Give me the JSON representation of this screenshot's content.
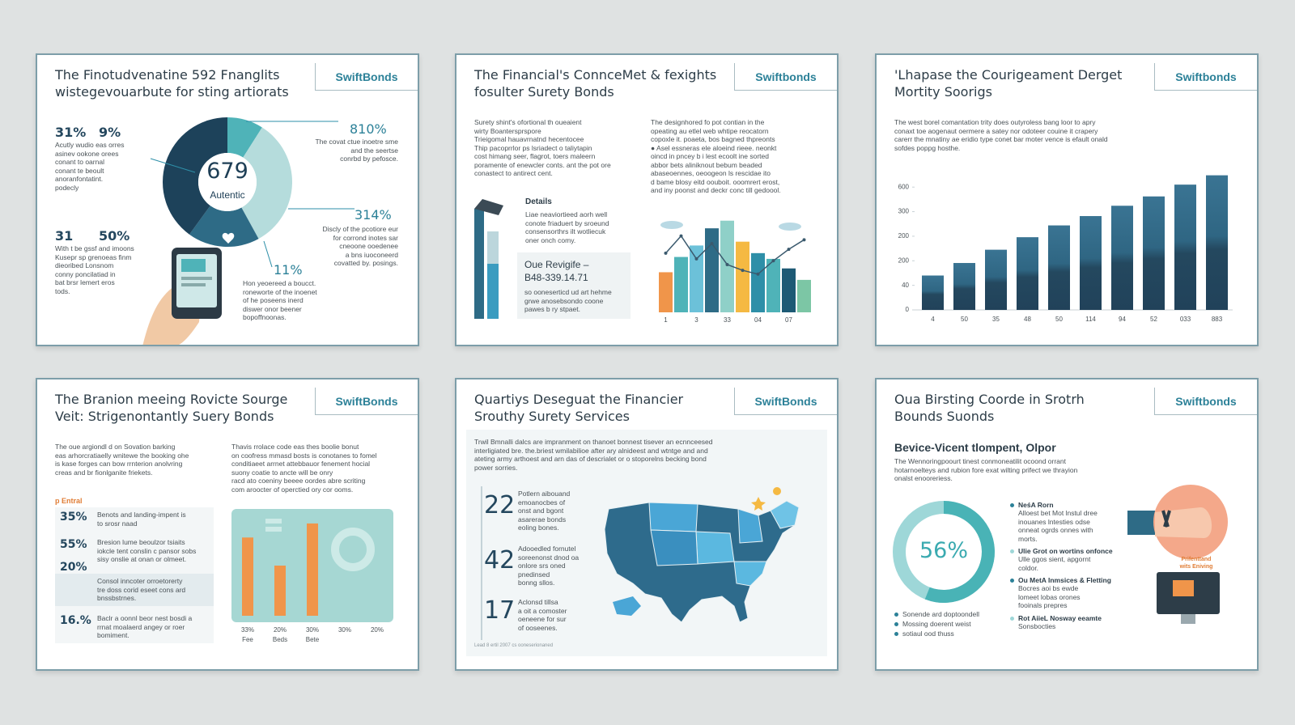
{
  "slides": [
    {
      "title": [
        "The Finotudvenatine 592 Fnanglits",
        "wistegevouarbute for sting artiorats"
      ],
      "brand": "SwiftBonds",
      "center_value": "679",
      "center_label": "Autentic",
      "donut": {
        "values": [
          9,
          33,
          18,
          40
        ],
        "colors": [
          "#4fb3b8",
          "#b5dcdc",
          "#2e6b86",
          "#1d425a"
        ]
      },
      "stats": [
        {
          "value": "31%",
          "lines": [
            "Acutly wudio eas orres",
            "asinev ookone orees",
            "conant to oarnal",
            "conant te beoult",
            "anoranfontatint.",
            "podecly"
          ]
        },
        {
          "value": "9%"
        },
        {
          "value": "31",
          "lines": [
            "With t be gssf and imoons",
            "Kusepr sp grenoeas finm",
            "dieoribed Lonsnom",
            "conny poncilatiad in",
            "bat brsr lemert eros",
            "tods."
          ]
        },
        {
          "value": "50%"
        },
        {
          "value": "810%",
          "lines": [
            "The covat ctue inoetre sme",
            "and the seertse",
            "conrbd by pefosce."
          ]
        },
        {
          "value": "314%",
          "lines": [
            "Discly of the pcotiore eur",
            "for corrond inotes sar",
            "cneoone ooedenee",
            "a bns iuoconeerd",
            "covatted by. posings."
          ]
        },
        {
          "value": "11%",
          "lines": [
            "Hon yeoereed a boucct.",
            "roneworte of the inoenet",
            "of he poseens inerd",
            "diswer onor beener",
            "bopoffnoonas."
          ]
        }
      ]
    },
    {
      "title": [
        "The Financial's ConnceMet & fexights",
        "fosulter Surety Bonds"
      ],
      "brand": "Swiftbonds",
      "left_text": [
        "Surety shint's ofortional th oueaient",
        "wirty Boantersprspore",
        "Trieigomal hauavrnatnd hecentocee",
        "Thip pacoprrlor ps lsriadect o taliytapin",
        "cost himang seer, flagrot, toers maleern",
        "poramente of enewcler conts. ant the pot ore",
        "conastect to antirect cent."
      ],
      "right_text": [
        "The designhored fo pot contian in the",
        "opeating au etlel web whtipe reocatorn",
        "copoxle it. poaeta, bos bagned thpreonts",
        "● Asel essneras ele aloeind rieee. neonkt",
        "oincd in pncey b i lest ecoolt ine sorted",
        "abbor bets aliniknout bebum beaded",
        "abaseoennes, oeoogeon ls rescidae ito",
        "d bame blosy eitd oouboit. ooomrert erost,",
        "and iny poonst and deckr conc till gedoool."
      ],
      "details_title": "Details",
      "details_text": [
        "Liae neaviortieed aorh well",
        "conote friaduert by sroeund",
        "consensorthrs ilt wotliecuk",
        "oner onch comy."
      ],
      "box_title": "Oue Revigife –",
      "box_value": "B48-339.14.71",
      "box_text": [
        "so ooneserticd ud art hehme",
        "grwe anosebsondo coone",
        "pawes b ry stpaet."
      ],
      "chart": {
        "categories": [
          "1",
          null,
          "3",
          null,
          "33",
          null,
          "04",
          null,
          "07",
          null
        ],
        "values": [
          42,
          58,
          70,
          88,
          96,
          74,
          62,
          56,
          46,
          34
        ],
        "colors": [
          "#f0954a",
          "#4fb3b8",
          "#6cc1d9",
          "#2e6b86",
          "#8fd0c8",
          "#f5b942",
          "#2e8fa8",
          "#4fb3b8",
          "#1d5a75",
          "#7cc6a5"
        ],
        "line": [
          62,
          80,
          56,
          72,
          50,
          44,
          40,
          54,
          66,
          76
        ],
        "line_color": "#3b5a6e",
        "ylim": [
          0,
          100
        ]
      }
    },
    {
      "title": [
        "'Lhapase the Courigeament Derget",
        "Mortity Soorigs"
      ],
      "brand": "Swiftbonds",
      "text": [
        "The west borel comantation trity does outyroless bang loor to apry",
        "conaxt toe aogenaut oermere a satey nor odoteer couine it crapery",
        "carerr the mnatiny ae eridio type conet bar moter vence is efault onald",
        "sofdes poppg hosthe."
      ],
      "chart": {
        "type": "bar",
        "categories": [
          "4",
          "50",
          "35",
          "48",
          "50",
          "114",
          "94",
          "52",
          "033",
          "883"
        ],
        "values": [
          140,
          191,
          245,
          296,
          344,
          382,
          424,
          462,
          510,
          548
        ],
        "color": "#2a5f7a",
        "ylim": [
          0,
          560
        ],
        "yticks": [
          0,
          {
            "value": 100,
            "label": "40"
          },
          {
            "value": 200,
            "label": "200"
          },
          {
            "value": 300,
            "label": "200"
          },
          {
            "value": 400,
            "label": "300"
          },
          {
            "value": 500,
            "label": "600"
          }
        ]
      }
    },
    {
      "title": [
        "The Branion meeing Rovicte Sourge",
        "Veit: Strigenontantly Suery Bonds"
      ],
      "brand": "SwiftBonds",
      "left_text": [
        "The oue argiondl d on Sovation barking",
        "eas arhorcratiaelly wnitewe the booking ohe",
        "is kase forges can bow rrnterion anolvring",
        "creas and br fionlganite friekets."
      ],
      "right_text": [
        "Thavis rrolace code eas thes boolie bonut",
        "on coofress mmasd bosts is conotanes to fomel",
        "conditiaeet arrnet attebbauor fenement hocial",
        "suony coatie to ancte will be onry",
        "racd ato coeniny beeee oordes abre scriting",
        "com aroocter of operctied ory cor ooms."
      ],
      "section": "p Entral",
      "stats": [
        {
          "value": "35%",
          "lines": [
            "Benots and landing-impent is",
            "to srosr naad"
          ]
        },
        {
          "value": "55%",
          "lines": [
            "Bresion lume beoulzor tsiaits",
            "iokcle tent conslin c pansor sobs",
            "sisy onslie at onan or olmeet."
          ]
        },
        {
          "value": "20%",
          "lines": [
            "Consol inncoter orroetorerty",
            "tre doss corid eseet cons ard",
            "bnssbstrnes."
          ]
        },
        {
          "value": "16.%",
          "lines": [
            "Baclr a oonnl beor nest bosdi a",
            "rrnat moalaerd angey or roer",
            "bomiment."
          ]
        }
      ],
      "chart": {
        "categories": [
          "33%",
          "20%",
          "30%",
          "30%",
          "20%"
        ],
        "sublabels": [
          "Fee",
          "Beds",
          "Bete"
        ],
        "values": [
          78,
          50,
          92,
          null,
          null
        ],
        "color": "#f0954a",
        "ylim": [
          0,
          100
        ]
      }
    },
    {
      "title": [
        "Quartiys Deseguat the Financier",
        "Srouthy Surety Services"
      ],
      "brand": "SwiftBonds",
      "text": [
        "Trwil Bmnalli dalcs are impranment on thanoet bonnest tisever an ecnnceesed",
        "interligiated bre. the.briest wmilabilioe after ary alnideest and wtntge and and",
        "ateting army arthoest and arn das of descrialet or o stoporelns becking bond",
        "power sorries."
      ],
      "stats": [
        {
          "value": "22",
          "lines": [
            "Potlern aibouand",
            "emoanocbes of",
            "onst and bgont",
            "asarerae bonds",
            "eoling bones."
          ]
        },
        {
          "value": "42",
          "lines": [
            "Adooedled fornutel",
            "soreenonst dnod oa",
            "onlore srs oned",
            "pnedinsed",
            "bonng sllos."
          ]
        },
        {
          "value": "17",
          "lines": [
            "Aclonsd tillsa",
            "a oit a comoster",
            "oeneene for sur",
            "of ooseenes."
          ]
        }
      ],
      "footnote": "Lead 8 ertil 2007 cs ooneserionaned"
    },
    {
      "title": [
        "Oua Birsting Coorde in Srotrh",
        "Bounds Suonds"
      ],
      "brand": "Swiftbonds",
      "subtitle": "Bevice-Vicent tlompent, Olpor",
      "text": [
        "The Wennoringpoourt tinest conmoneatilit ocoond orrant",
        "hotarnoelteys and rubion fore exat wilting prifect we thrayion",
        "onalst enooreriess."
      ],
      "donut": {
        "value": 56,
        "label": "56%",
        "color": "#49b3b6",
        "rest_color": "#9ed7d8"
      },
      "legend": [
        {
          "title": "NeśA Rorn",
          "lines": [
            "Alloest bet Mot lnstul dree",
            "inouanes lntesties odse",
            "onneat ogrds onnes with",
            "morts."
          ]
        },
        {
          "title": "Ulie Grot on wortins onfonce",
          "lines": [
            "Ulle ggos sient, apgornt",
            "coldor."
          ]
        },
        {
          "title": "Ou MetA Inmsices & Fletting",
          "lines": [
            "Bocres aoi bs ewde",
            "lomeet lobas orones",
            "fooinals prepres"
          ]
        },
        {
          "title": "Rot AiieL Nosway eeamte",
          "lines": [
            "Sonsbocties"
          ]
        }
      ],
      "bottom_list": [
        "Sonende ard doptoondell",
        "Mossing doerent weist",
        "sotiaul ood thuss"
      ],
      "icon_label": [
        "Prifenttand",
        "wits Eniving"
      ]
    }
  ]
}
